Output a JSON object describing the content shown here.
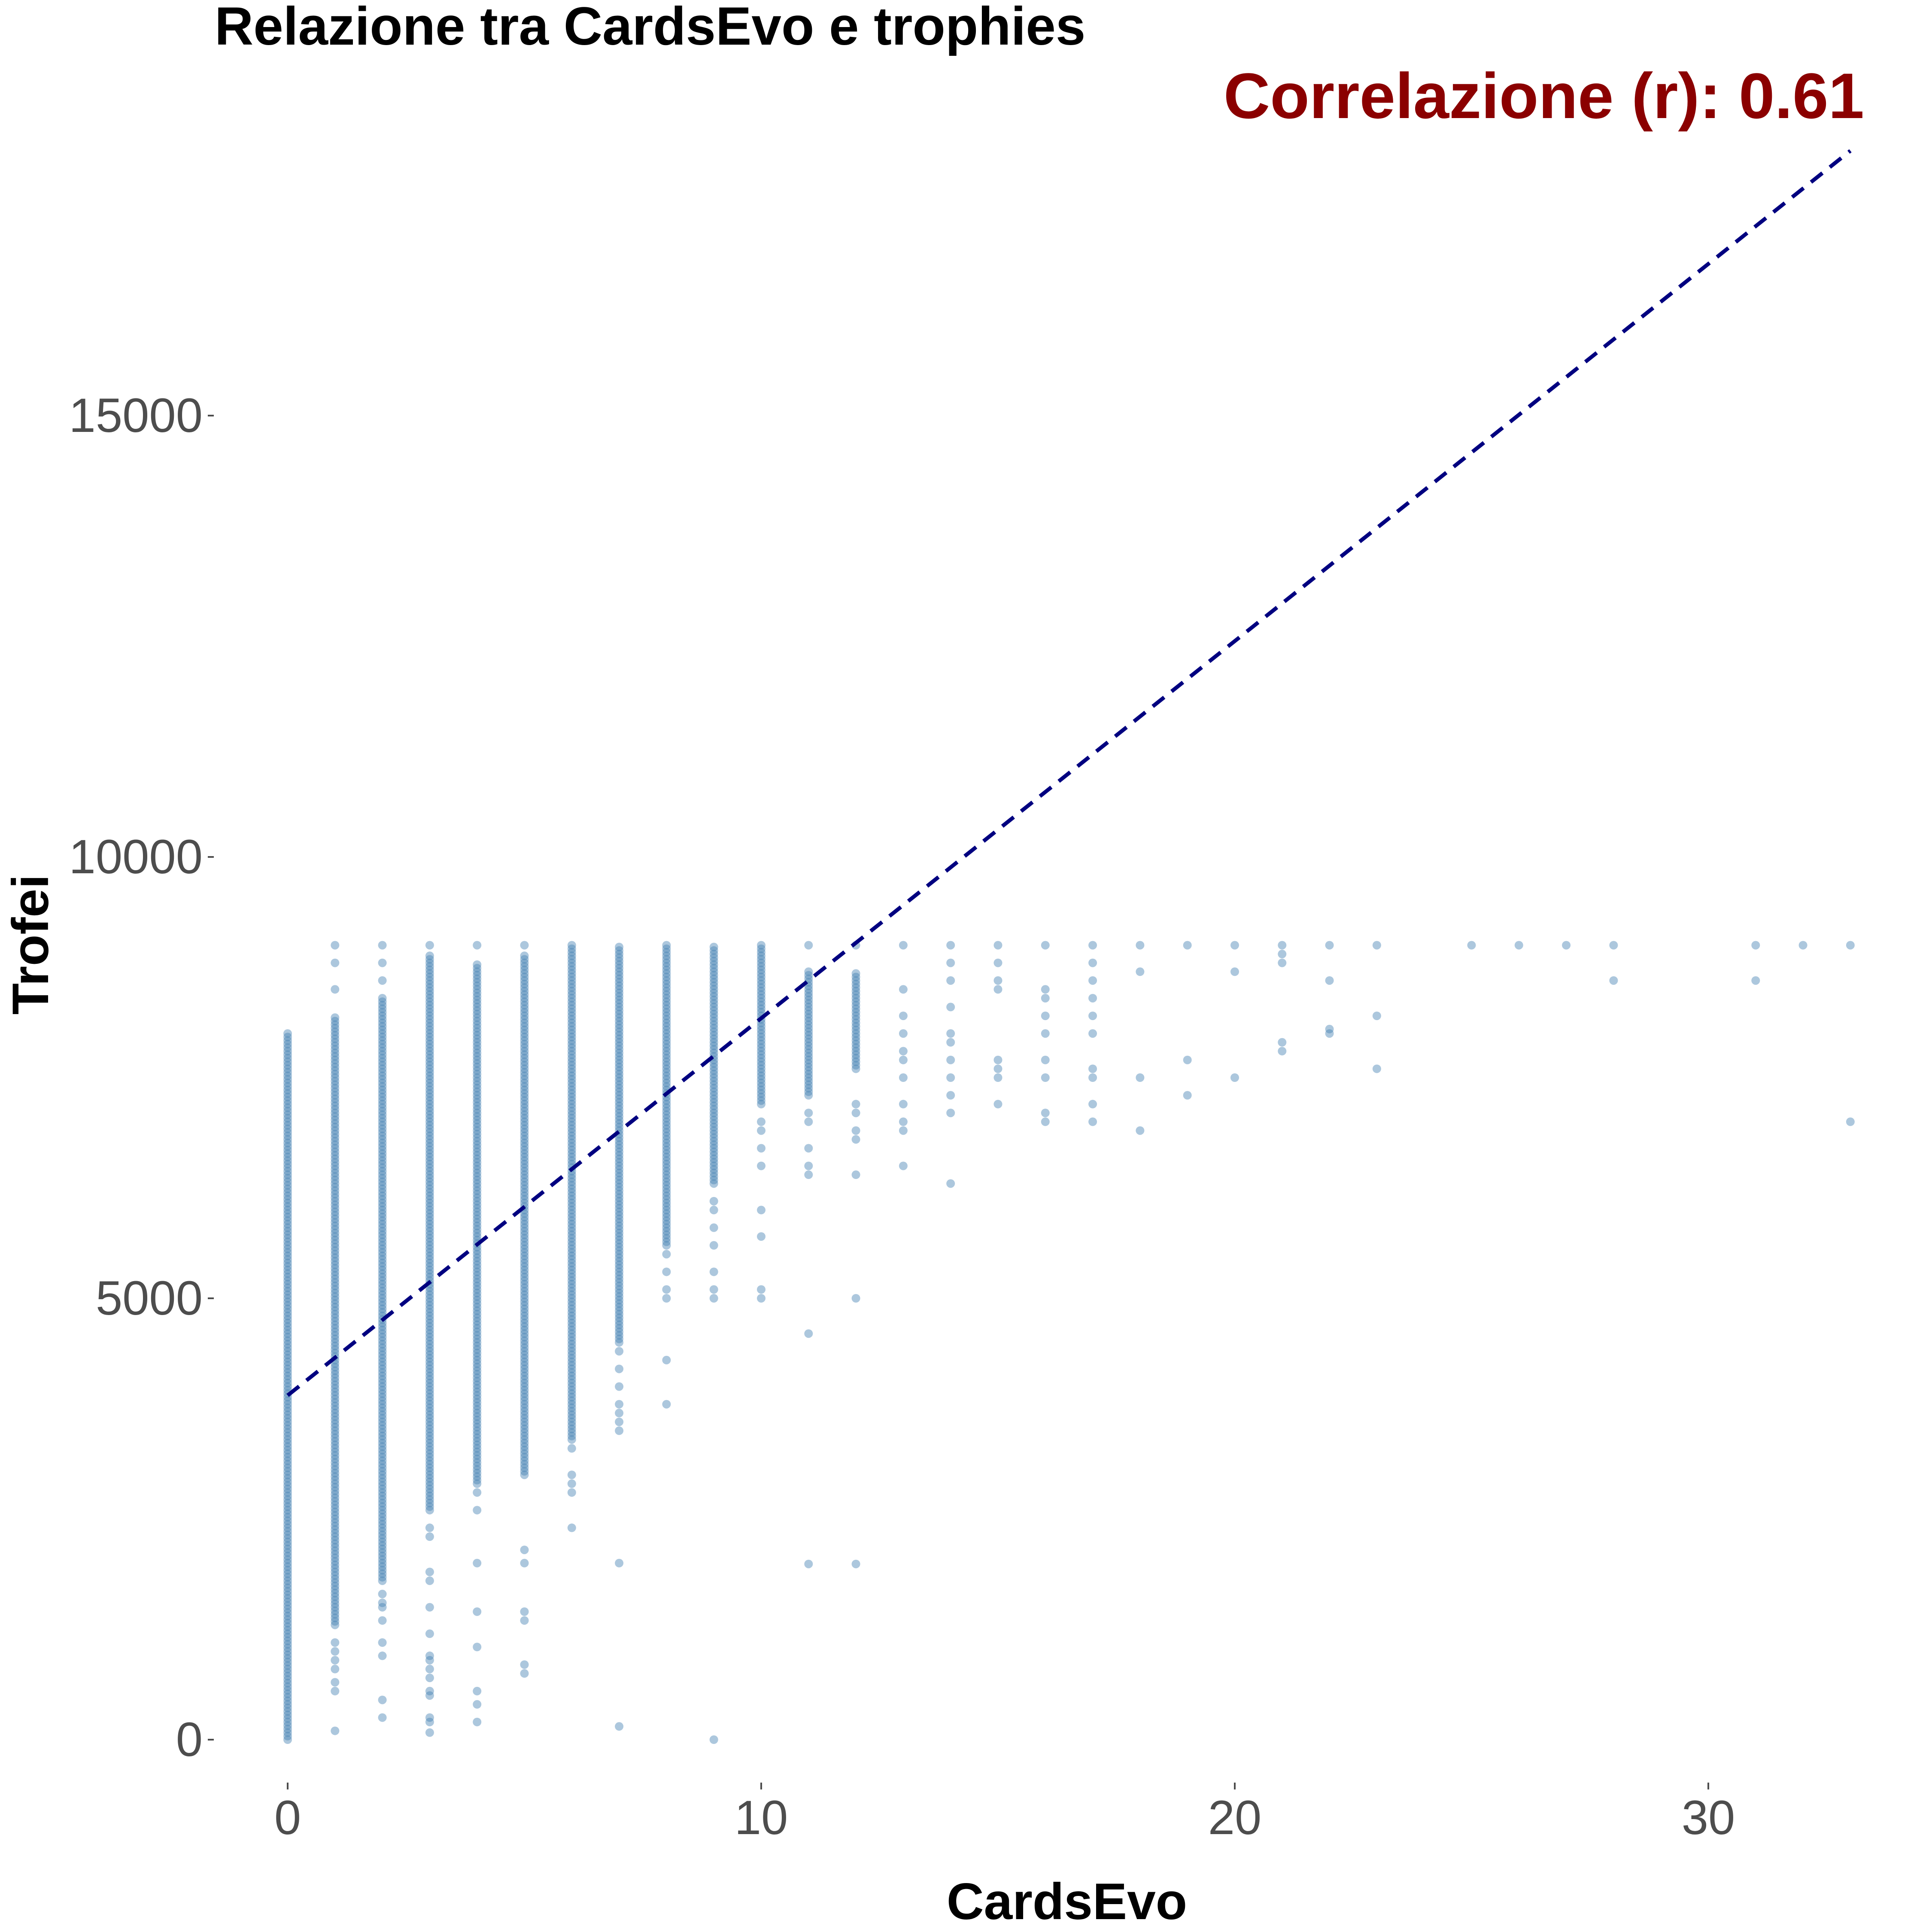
{
  "chart_data": {
    "type": "scatter",
    "title": "Relazione tra CardsEvo e trophies",
    "annotation": "Correlazione (r): 0.61",
    "xlabel": "CardsEvo",
    "ylabel": "Trofei",
    "xlim": [
      -1.7,
      34.9
    ],
    "ylim": [
      -1450,
      18800
    ],
    "x_ticks": [
      0,
      10,
      20,
      30
    ],
    "y_ticks": [
      0,
      5000,
      10000,
      15000
    ],
    "x_tick_labels": [
      "0",
      "10",
      "20",
      "30"
    ],
    "y_tick_labels": [
      "0",
      "5000",
      "10000",
      "15000"
    ],
    "grid": false,
    "legend": "none",
    "colors": {
      "points": "#4682b4",
      "trend_line": "#000080",
      "annotation": "#8b0000"
    },
    "trend_line": {
      "style": "dashed",
      "points": [
        [
          0,
          3900
        ],
        [
          33,
          18000
        ]
      ]
    },
    "columns": [
      {
        "x": 0,
        "ranges": [
          [
            0,
            8000
          ]
        ],
        "extra": []
      },
      {
        "x": 1,
        "ranges": [
          [
            1300,
            8200
          ]
        ],
        "extra": [
          100,
          550,
          650,
          800,
          900,
          1000,
          1100,
          8500,
          8800,
          9000
        ]
      },
      {
        "x": 2,
        "ranges": [
          [
            1800,
            8400
          ]
        ],
        "extra": [
          250,
          450,
          950,
          1100,
          1350,
          1500,
          1550,
          1650,
          8600,
          8800,
          9000
        ]
      },
      {
        "x": 3,
        "ranges": [
          [
            2600,
            8900
          ]
        ],
        "extra": [
          80,
          200,
          250,
          500,
          550,
          700,
          800,
          900,
          950,
          1200,
          1500,
          1800,
          1900,
          2300,
          2400,
          9000
        ]
      },
      {
        "x": 4,
        "ranges": [
          [
            2900,
            8800
          ]
        ],
        "extra": [
          200,
          400,
          550,
          1050,
          1450,
          2000,
          2600,
          2800,
          9000
        ]
      },
      {
        "x": 5,
        "ranges": [
          [
            3000,
            8900
          ]
        ],
        "extra": [
          750,
          850,
          1350,
          1450,
          2000,
          2150,
          9000
        ]
      },
      {
        "x": 6,
        "ranges": [
          [
            3400,
            9000
          ]
        ],
        "extra": [
          2400,
          2800,
          2900,
          3000,
          3300
        ]
      },
      {
        "x": 7,
        "ranges": [
          [
            4500,
            9000
          ]
        ],
        "extra": [
          150,
          2000,
          3500,
          3600,
          3700,
          3800,
          4000,
          4200,
          4400
        ]
      },
      {
        "x": 8,
        "ranges": [
          [
            5600,
            9000
          ]
        ],
        "extra": [
          3800,
          4300,
          5000,
          5100,
          5300,
          5500
        ]
      },
      {
        "x": 9,
        "ranges": [
          [
            6300,
            9000
          ]
        ],
        "extra": [
          0,
          5000,
          5100,
          5300,
          5600,
          5800,
          6000,
          6100
        ]
      },
      {
        "x": 10,
        "ranges": [
          [
            7200,
            9000
          ]
        ],
        "extra": [
          5000,
          5100,
          5700,
          6000,
          6500,
          6700,
          6900,
          7000
        ]
      },
      {
        "x": 11,
        "ranges": [
          [
            7300,
            8700
          ]
        ],
        "extra": [
          1990,
          4600,
          6400,
          6500,
          6700,
          7000,
          7100,
          9000
        ]
      },
      {
        "x": 12,
        "ranges": [
          [
            7600,
            8700
          ]
        ],
        "extra": [
          1990,
          5000,
          6400,
          6800,
          6900,
          7100,
          7200,
          9000
        ]
      },
      {
        "x": 13,
        "ranges": [],
        "extra": [
          6500,
          6900,
          7000,
          7200,
          7500,
          7700,
          7800,
          8000,
          8200,
          8500,
          9000
        ]
      },
      {
        "x": 14,
        "ranges": [],
        "extra": [
          6300,
          7100,
          7300,
          7500,
          7700,
          7900,
          8000,
          8300,
          8600,
          8800,
          9000
        ]
      },
      {
        "x": 15,
        "ranges": [],
        "extra": [
          7200,
          7500,
          7600,
          7700,
          8500,
          8600,
          8800,
          9000
        ]
      },
      {
        "x": 16,
        "ranges": [],
        "extra": [
          7000,
          7100,
          7500,
          7700,
          8000,
          8200,
          8400,
          8500,
          9000
        ]
      },
      {
        "x": 17,
        "ranges": [],
        "extra": [
          7000,
          7200,
          7500,
          7600,
          8000,
          8200,
          8400,
          8600,
          8800,
          9000
        ]
      },
      {
        "x": 18,
        "ranges": [],
        "extra": [
          6900,
          7500,
          8700,
          9000
        ]
      },
      {
        "x": 19,
        "ranges": [],
        "extra": [
          7300,
          7700,
          9000
        ]
      },
      {
        "x": 20,
        "ranges": [],
        "extra": [
          7500,
          8700,
          9000
        ]
      },
      {
        "x": 21,
        "ranges": [],
        "extra": [
          7800,
          7900,
          8800,
          8900,
          9000
        ]
      },
      {
        "x": 22,
        "ranges": [],
        "extra": [
          8000,
          8050,
          8600,
          9000
        ]
      },
      {
        "x": 23,
        "ranges": [],
        "extra": [
          7600,
          8200,
          9000
        ]
      },
      {
        "x": 25,
        "ranges": [],
        "extra": [
          9000
        ]
      },
      {
        "x": 26,
        "ranges": [],
        "extra": [
          9000
        ]
      },
      {
        "x": 27,
        "ranges": [],
        "extra": [
          9000
        ]
      },
      {
        "x": 28,
        "ranges": [],
        "extra": [
          8600,
          9000
        ]
      },
      {
        "x": 31,
        "ranges": [],
        "extra": [
          8600,
          9000
        ]
      },
      {
        "x": 32,
        "ranges": [],
        "extra": [
          9000
        ]
      },
      {
        "x": 33,
        "ranges": [],
        "extra": [
          7000,
          9000
        ]
      }
    ]
  }
}
